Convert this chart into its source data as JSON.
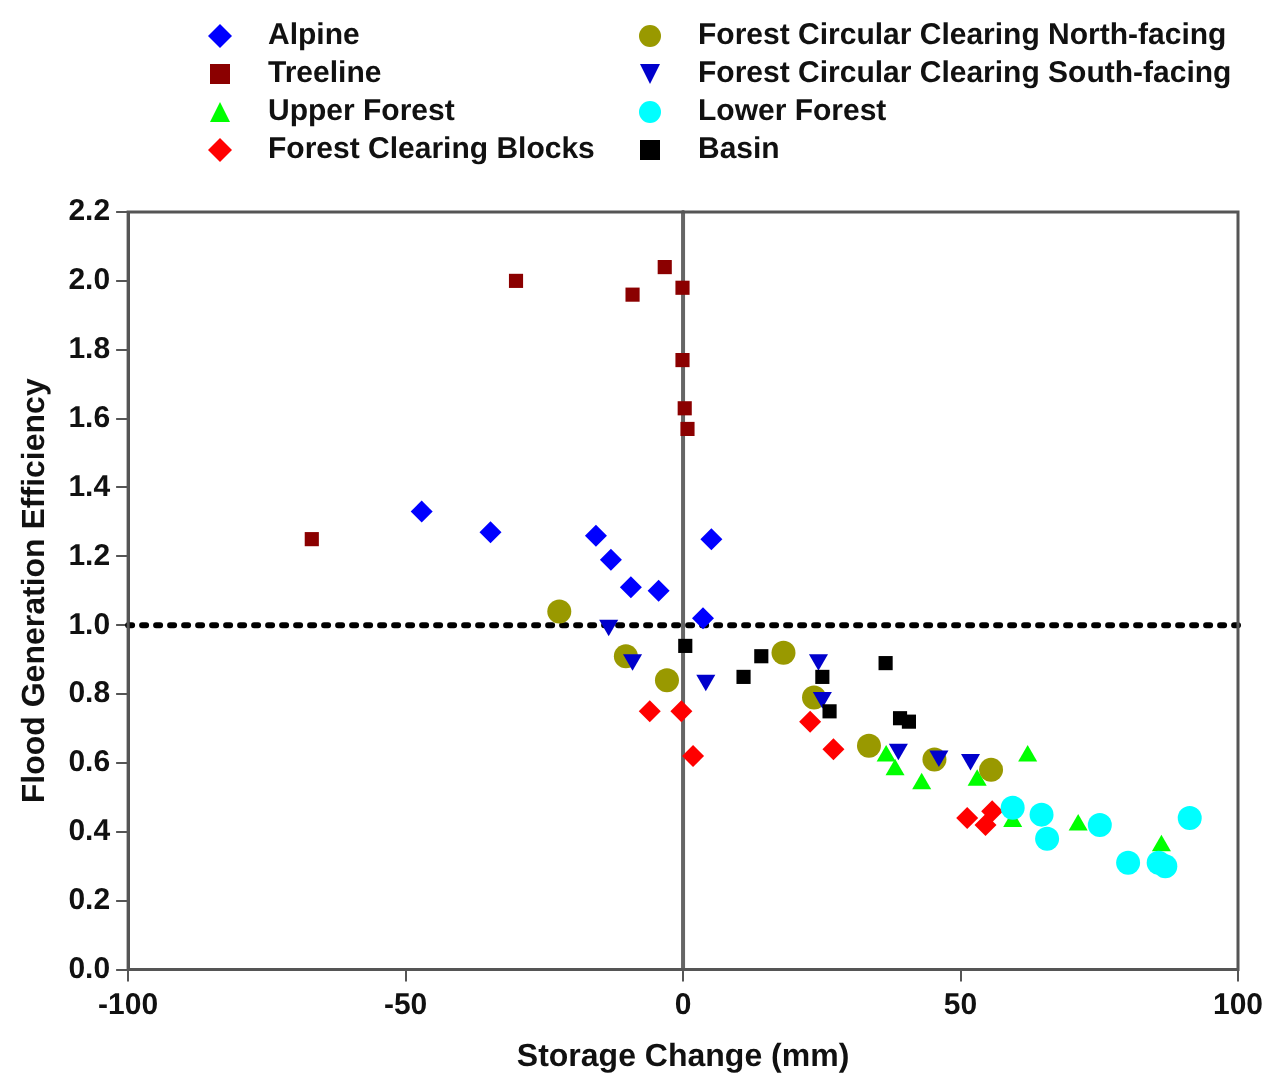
{
  "chart_data": {
    "type": "scatter",
    "xlabel": "Storage Change (mm)",
    "ylabel": "Flood Generation Efficiency",
    "xlim": [
      -100,
      100
    ],
    "xticks": [
      -100,
      -50,
      0,
      50,
      100
    ],
    "ylim": [
      0,
      2.2
    ],
    "yticks": [
      {
        "value": 0,
        "label": "0.0"
      },
      0.2,
      0.4,
      0.6,
      0.8,
      {
        "value": 1,
        "label": "1.0"
      },
      1.2,
      1.4,
      1.6,
      1.8,
      {
        "value": 2,
        "label": "2.0"
      },
      2.2
    ],
    "grid": false,
    "legend": "top",
    "ref_lines": [
      {
        "axis": "y",
        "value": 1,
        "color": "#000000",
        "line_style": "dotted"
      },
      {
        "axis": "x",
        "value": 0,
        "color": "#666666",
        "line_style": "solid"
      }
    ],
    "series": [
      {
        "name": "Alpine",
        "color": "#0000ff",
        "marker": "diamond",
        "x": [
          -47.1,
          -34.7,
          -15.7,
          -13.0,
          -9.4,
          -4.4,
          5.1,
          3.6
        ],
        "values": [
          1.33,
          1.27,
          1.26,
          1.19,
          1.11,
          1.1,
          1.25,
          1.02
        ]
      },
      {
        "name": "Treeline",
        "color": "#8b0000",
        "marker": "square",
        "x": [
          -66.9,
          -30.1,
          -9.1,
          -3.3,
          -0.1,
          -0.1,
          0.3,
          0.8
        ],
        "values": [
          1.25,
          2.0,
          1.96,
          2.04,
          1.98,
          1.77,
          1.63,
          1.57
        ]
      },
      {
        "name": "Upper Forest",
        "color": "#00ff00",
        "marker": "triangle",
        "x": [
          36.6,
          38.2,
          43.0,
          53.0,
          62.1,
          59.4,
          71.2,
          86.2
        ],
        "values": [
          0.62,
          0.58,
          0.54,
          0.55,
          0.62,
          0.43,
          0.42,
          0.36
        ]
      },
      {
        "name": "Forest Clearing Blocks",
        "color": "#ff0000",
        "marker": "diamond",
        "x": [
          -6.0,
          -0.3,
          1.8,
          22.9,
          27.1,
          51.2,
          54.5,
          55.7
        ],
        "values": [
          0.75,
          0.75,
          0.62,
          0.72,
          0.64,
          0.44,
          0.42,
          0.46
        ]
      },
      {
        "name": "Forest Circular Clearing North-facing",
        "color": "#999900",
        "marker": "circle",
        "x": [
          -22.3,
          -10.3,
          -2.9,
          18.1,
          23.6,
          33.5,
          45.3,
          55.5
        ],
        "values": [
          1.04,
          0.91,
          0.84,
          0.92,
          0.79,
          0.65,
          0.61,
          0.58
        ]
      },
      {
        "name": "Forest Circular Clearing South-facing",
        "color": "#0000cc",
        "marker": "triangle-down",
        "x": [
          -13.4,
          -9.1,
          4.1,
          24.4,
          25.1,
          38.8,
          46.1,
          51.8
        ],
        "values": [
          1.0,
          0.9,
          0.84,
          0.9,
          0.79,
          0.64,
          0.62,
          0.61
        ]
      },
      {
        "name": "Lower Forest",
        "color": "#00ffff",
        "marker": "circle",
        "x": [
          59.4,
          64.6,
          65.6,
          75.1,
          80.2,
          85.7,
          86.9,
          91.3
        ],
        "values": [
          0.47,
          0.45,
          0.38,
          0.42,
          0.31,
          0.31,
          0.3,
          0.44
        ]
      },
      {
        "name": "Basin",
        "color": "#000000",
        "marker": "square",
        "x": [
          0.4,
          14.1,
          10.9,
          25.1,
          36.5,
          26.4,
          39.1,
          40.7
        ],
        "values": [
          0.94,
          0.91,
          0.85,
          0.85,
          0.89,
          0.75,
          0.73,
          0.72
        ]
      }
    ]
  }
}
